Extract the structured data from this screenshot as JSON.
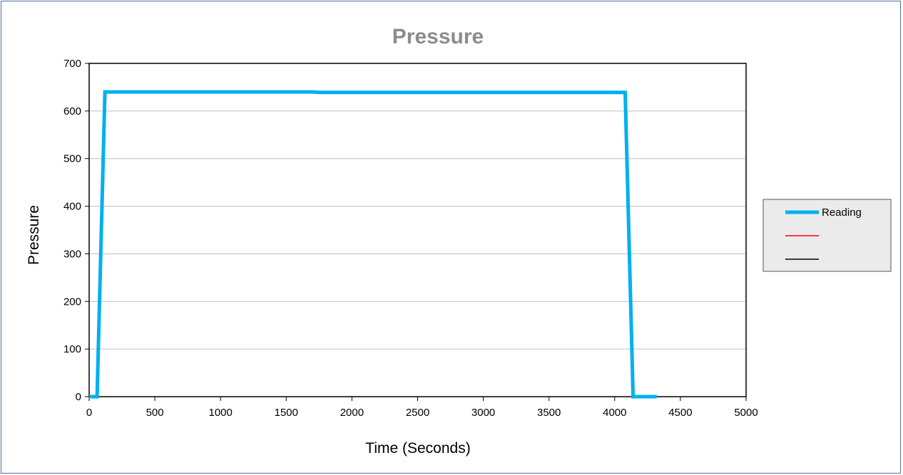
{
  "chart_data": {
    "type": "line",
    "title": "Pressure",
    "xlabel": "Time (Seconds)",
    "ylabel": "Pressure",
    "xlim": [
      0,
      5000
    ],
    "ylim": [
      0,
      700
    ],
    "x_ticks": [
      0,
      500,
      1000,
      1500,
      2000,
      2500,
      3000,
      3500,
      4000,
      4500,
      5000
    ],
    "y_ticks": [
      0,
      100,
      200,
      300,
      400,
      500,
      600,
      700
    ],
    "grid": "horizontal",
    "legend_position": "right",
    "series": [
      {
        "name": "Reading",
        "color": "#00b0f0",
        "x": [
          0,
          60,
          120,
          1700,
          1750,
          4080,
          4140,
          4320
        ],
        "y": [
          0,
          0,
          640,
          640,
          639,
          639,
          0,
          0
        ]
      },
      {
        "name": "",
        "color": "#ff0000",
        "x": [],
        "y": []
      },
      {
        "name": "",
        "color": "#000000",
        "x": [],
        "y": []
      }
    ]
  }
}
